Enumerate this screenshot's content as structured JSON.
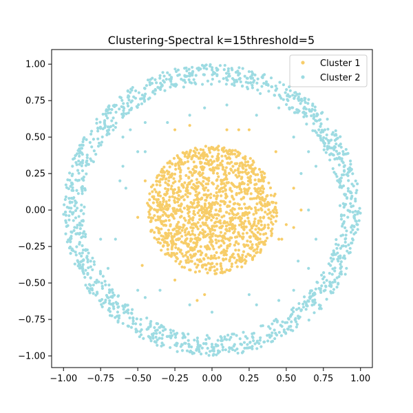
{
  "chart_data": {
    "type": "scatter",
    "title": "Clustering-Spectral k=15threshold=5",
    "xlabel": "",
    "ylabel": "",
    "xlim": [
      -1.08,
      1.08
    ],
    "ylim": [
      -1.08,
      1.1
    ],
    "x_ticks": [
      -1.0,
      -0.75,
      -0.5,
      -0.25,
      0.0,
      0.25,
      0.5,
      0.75,
      1.0
    ],
    "x_tick_labels": [
      "−1.00",
      "−0.75",
      "−0.50",
      "−0.25",
      "0.00",
      "0.25",
      "0.50",
      "0.75",
      "1.00"
    ],
    "y_ticks": [
      -1.0,
      -0.75,
      -0.5,
      -0.25,
      0.0,
      0.25,
      0.5,
      0.75,
      1.0
    ],
    "y_tick_labels": [
      "−1.00",
      "−0.75",
      "−0.50",
      "−0.25",
      "0.00",
      "0.25",
      "0.50",
      "0.75",
      "1.00"
    ],
    "grid": false,
    "legend_position": "upper-right",
    "series": [
      {
        "name": "Cluster 1",
        "color": "#f7cd69",
        "description": "dense filled disc of points",
        "center": [
          0.0,
          0.0
        ],
        "radius": [
          0.0,
          0.44
        ],
        "point_count": 1400,
        "extra_points": [
          [
            -0.47,
            -0.38
          ],
          [
            -0.25,
            -0.48
          ],
          [
            -0.05,
            -0.58
          ],
          [
            -0.1,
            -0.62
          ],
          [
            -0.25,
            0.55
          ],
          [
            -0.15,
            0.58
          ],
          [
            0.1,
            0.55
          ],
          [
            0.18,
            0.55
          ],
          [
            0.25,
            0.55
          ],
          [
            0.47,
            -0.2
          ],
          [
            0.55,
            0.15
          ],
          [
            0.6,
            0.0
          ],
          [
            0.43,
            0.4
          ],
          [
            0.45,
            -0.2
          ],
          [
            0.5,
            -0.1
          ],
          [
            -0.5,
            -0.05
          ],
          [
            -0.45,
            0.2
          ],
          [
            0.55,
            -0.12
          ]
        ]
      },
      {
        "name": "Cluster 2",
        "color": "#9ddbe2",
        "description": "annulus ring of points",
        "center": [
          0.0,
          0.0
        ],
        "radius": [
          0.86,
          1.0
        ],
        "point_count": 1300,
        "extra_points": [
          [
            -0.6,
            0.5
          ],
          [
            -0.5,
            0.4
          ],
          [
            -0.45,
            0.4
          ],
          [
            -0.6,
            0.3
          ],
          [
            -0.62,
            0.2
          ],
          [
            -0.58,
            0.15
          ],
          [
            -0.65,
            -0.2
          ],
          [
            -0.75,
            -0.2
          ],
          [
            -0.5,
            -0.55
          ],
          [
            -0.45,
            -0.6
          ],
          [
            -0.35,
            -0.55
          ],
          [
            -0.15,
            -0.65
          ],
          [
            0.0,
            -0.7
          ],
          [
            0.3,
            -0.65
          ],
          [
            0.25,
            -0.58
          ],
          [
            0.45,
            -0.62
          ],
          [
            0.55,
            -0.55
          ],
          [
            0.65,
            -0.4
          ],
          [
            0.7,
            -0.2
          ],
          [
            0.65,
            0.0
          ],
          [
            0.7,
            0.3
          ],
          [
            0.65,
            0.4
          ],
          [
            0.55,
            0.5
          ],
          [
            0.45,
            0.7
          ],
          [
            0.3,
            0.65
          ],
          [
            0.1,
            0.72
          ],
          [
            -0.05,
            0.7
          ],
          [
            -0.15,
            0.65
          ],
          [
            -0.3,
            0.6
          ],
          [
            -0.45,
            0.6
          ],
          [
            -0.55,
            0.55
          ],
          [
            0.6,
            0.25
          ],
          [
            -0.7,
            -0.4
          ],
          [
            0.58,
            -0.35
          ]
        ]
      }
    ]
  }
}
